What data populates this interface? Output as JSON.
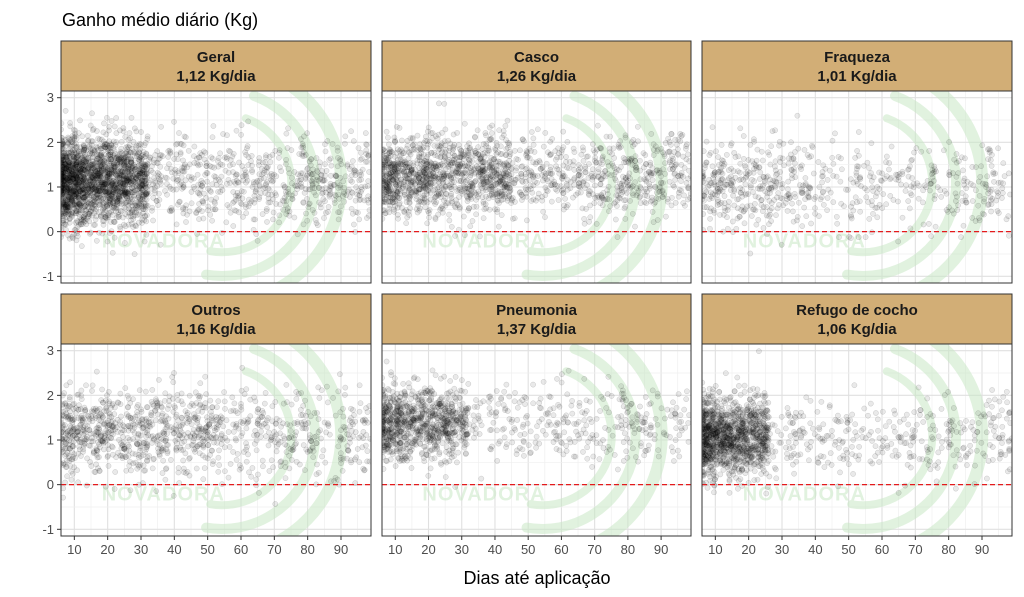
{
  "chart_data": {
    "type": "scatter",
    "title": "Ganho médio diário (Kg)",
    "xlabel": "Dias até aplicação",
    "ylabel": "",
    "xlim": [
      6,
      99
    ],
    "ylim": [
      -1.15,
      3.15
    ],
    "x_ticks": [
      10,
      20,
      30,
      40,
      50,
      60,
      70,
      80,
      90
    ],
    "y_ticks": [
      -1,
      0,
      1,
      2,
      3
    ],
    "reference_line": {
      "y": 0,
      "style": "dashed",
      "color": "#e41a1c"
    },
    "grid": true,
    "strip_color": "#d2ae76",
    "point_color": "#000000",
    "watermark_text": "NOVADORA",
    "panels": [
      {
        "name": "Geral",
        "summary": "1,12 Kg/dia",
        "mean": 1.12,
        "density": "very high, concentrated at 6–30 days",
        "point_ranges": [
          {
            "x": [
              6,
              99
            ],
            "y": [
              -1.1,
              3.0
            ]
          }
        ]
      },
      {
        "name": "Casco",
        "summary": "1,26 Kg/dia",
        "mean": 1.26,
        "density": "high, spread across 6–99 days",
        "point_ranges": [
          {
            "x": [
              6,
              99
            ],
            "y": [
              -0.9,
              3.0
            ]
          }
        ]
      },
      {
        "name": "Fraqueza",
        "summary": "1,01 Kg/dia",
        "mean": 1.01,
        "density": "low",
        "point_ranges": [
          {
            "x": [
              6,
              99
            ],
            "y": [
              -1.0,
              2.6
            ]
          }
        ]
      },
      {
        "name": "Outros",
        "summary": "1,16 Kg/dia",
        "mean": 1.16,
        "density": "medium",
        "point_ranges": [
          {
            "x": [
              6,
              99
            ],
            "y": [
              -1.0,
              3.0
            ]
          }
        ]
      },
      {
        "name": "Pneumonia",
        "summary": "1,37 Kg/dia",
        "mean": 1.37,
        "density": "medium, concentrated at 10–30 days",
        "point_ranges": [
          {
            "x": [
              6,
              99
            ],
            "y": [
              -0.7,
              3.0
            ]
          }
        ]
      },
      {
        "name": "Refugo de cocho",
        "summary": "1,06 Kg/dia",
        "mean": 1.06,
        "density": "high, concentrated at 6–25 days",
        "point_ranges": [
          {
            "x": [
              6,
              99
            ],
            "y": [
              -1.1,
              2.9
            ]
          }
        ]
      }
    ]
  }
}
